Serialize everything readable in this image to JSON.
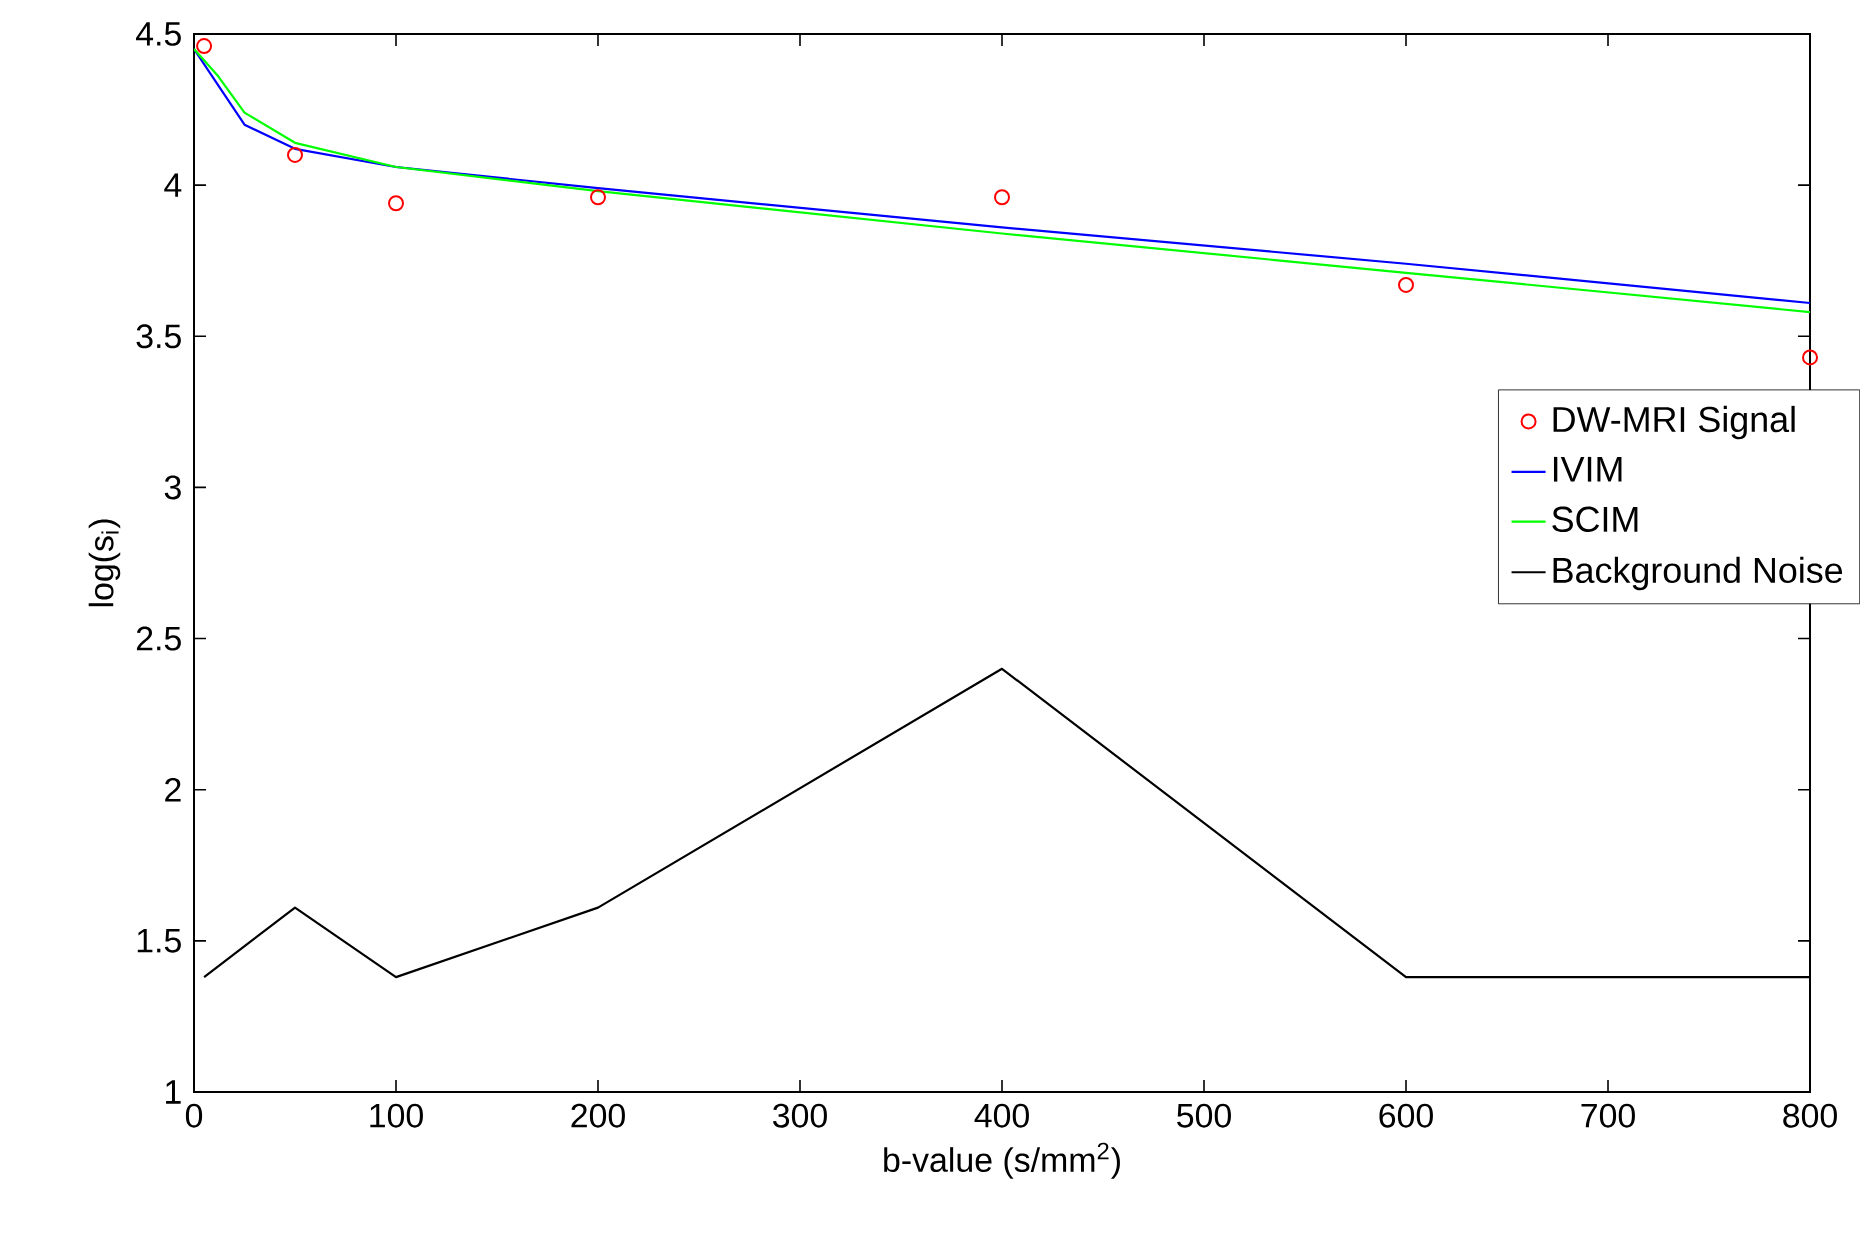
{
  "chart_data": {
    "type": "line",
    "xlabel": "b-value (s/mm$^{2}$)",
    "ylabel": "log(s$_{i}$)",
    "xlim": [
      0,
      800
    ],
    "ylim": [
      1,
      4.5
    ],
    "xticks": [
      0,
      100,
      200,
      300,
      400,
      500,
      600,
      700,
      800
    ],
    "yticks": [
      1,
      1.5,
      2,
      2.5,
      3,
      3.5,
      4,
      4.5
    ],
    "grid": false,
    "legend": "right",
    "series": [
      {
        "name": "DW-MRI Signal",
        "type": "scatter",
        "marker": "circle",
        "color": "#ff0000",
        "x": [
          5,
          50,
          100,
          200,
          400,
          600,
          800
        ],
        "values": [
          4.46,
          4.1,
          3.94,
          3.96,
          3.96,
          3.67,
          3.43
        ]
      },
      {
        "name": "IVIM",
        "color": "#0000ff",
        "x": [
          0,
          12,
          25,
          50,
          100,
          200,
          400,
          600,
          800
        ],
        "values": [
          4.45,
          4.33,
          4.2,
          4.12,
          4.06,
          3.99,
          3.86,
          3.74,
          3.61
        ]
      },
      {
        "name": "SCIM",
        "color": "#00ff00",
        "x": [
          0,
          12,
          25,
          50,
          100,
          200,
          400,
          600,
          800
        ],
        "values": [
          4.45,
          4.36,
          4.24,
          4.14,
          4.06,
          3.98,
          3.84,
          3.71,
          3.58
        ]
      },
      {
        "name": "Background Noise",
        "color": "#000000",
        "x": [
          5,
          50,
          100,
          200,
          400,
          600,
          800
        ],
        "values": [
          1.38,
          1.61,
          1.38,
          1.61,
          2.4,
          1.38,
          1.38
        ]
      }
    ]
  }
}
